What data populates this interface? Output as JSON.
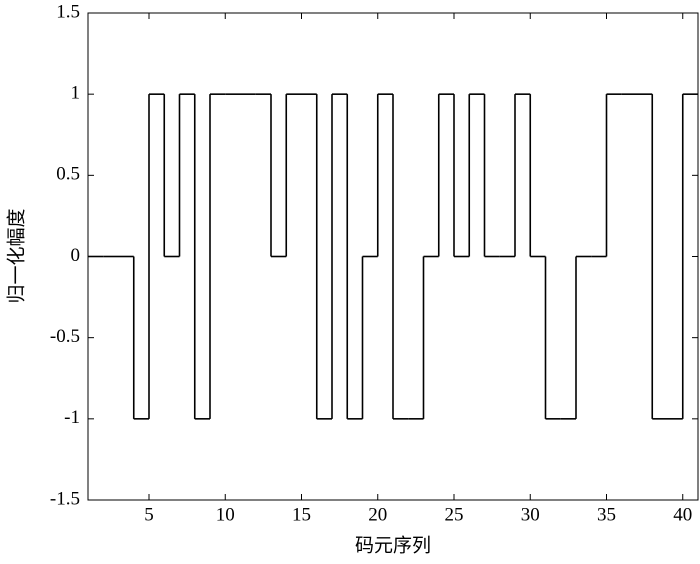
{
  "chart_data": {
    "type": "stairs",
    "xlabel": "码元序列",
    "ylabel": "归一化幅度",
    "edges": [
      1,
      2,
      3,
      4,
      5,
      6,
      7,
      8,
      9,
      10,
      11,
      12,
      13,
      14,
      15,
      16,
      17,
      18,
      19,
      20,
      21,
      22,
      23,
      24,
      25,
      26,
      27,
      28,
      29,
      30,
      31,
      32,
      33,
      34,
      35,
      36,
      37,
      38,
      39,
      40,
      41
    ],
    "values": [
      0,
      0,
      0,
      -1,
      1,
      0,
      1,
      -1,
      1,
      1,
      1,
      1,
      0,
      1,
      1,
      -1,
      1,
      -1,
      0,
      1,
      -1,
      -1,
      0,
      1,
      0,
      1,
      0,
      0,
      1,
      0,
      -1,
      -1,
      0,
      0,
      1,
      1,
      1,
      -1,
      -1,
      1
    ],
    "color": "#000000",
    "xlim": [
      1,
      41
    ],
    "xticks": [
      5,
      10,
      15,
      20,
      25,
      30,
      35,
      40
    ],
    "ylim": [
      -1.5,
      1.5
    ],
    "yticks": [
      -1.5,
      -1,
      -0.5,
      0,
      0.5,
      1,
      1.5
    ],
    "grid": false
  }
}
